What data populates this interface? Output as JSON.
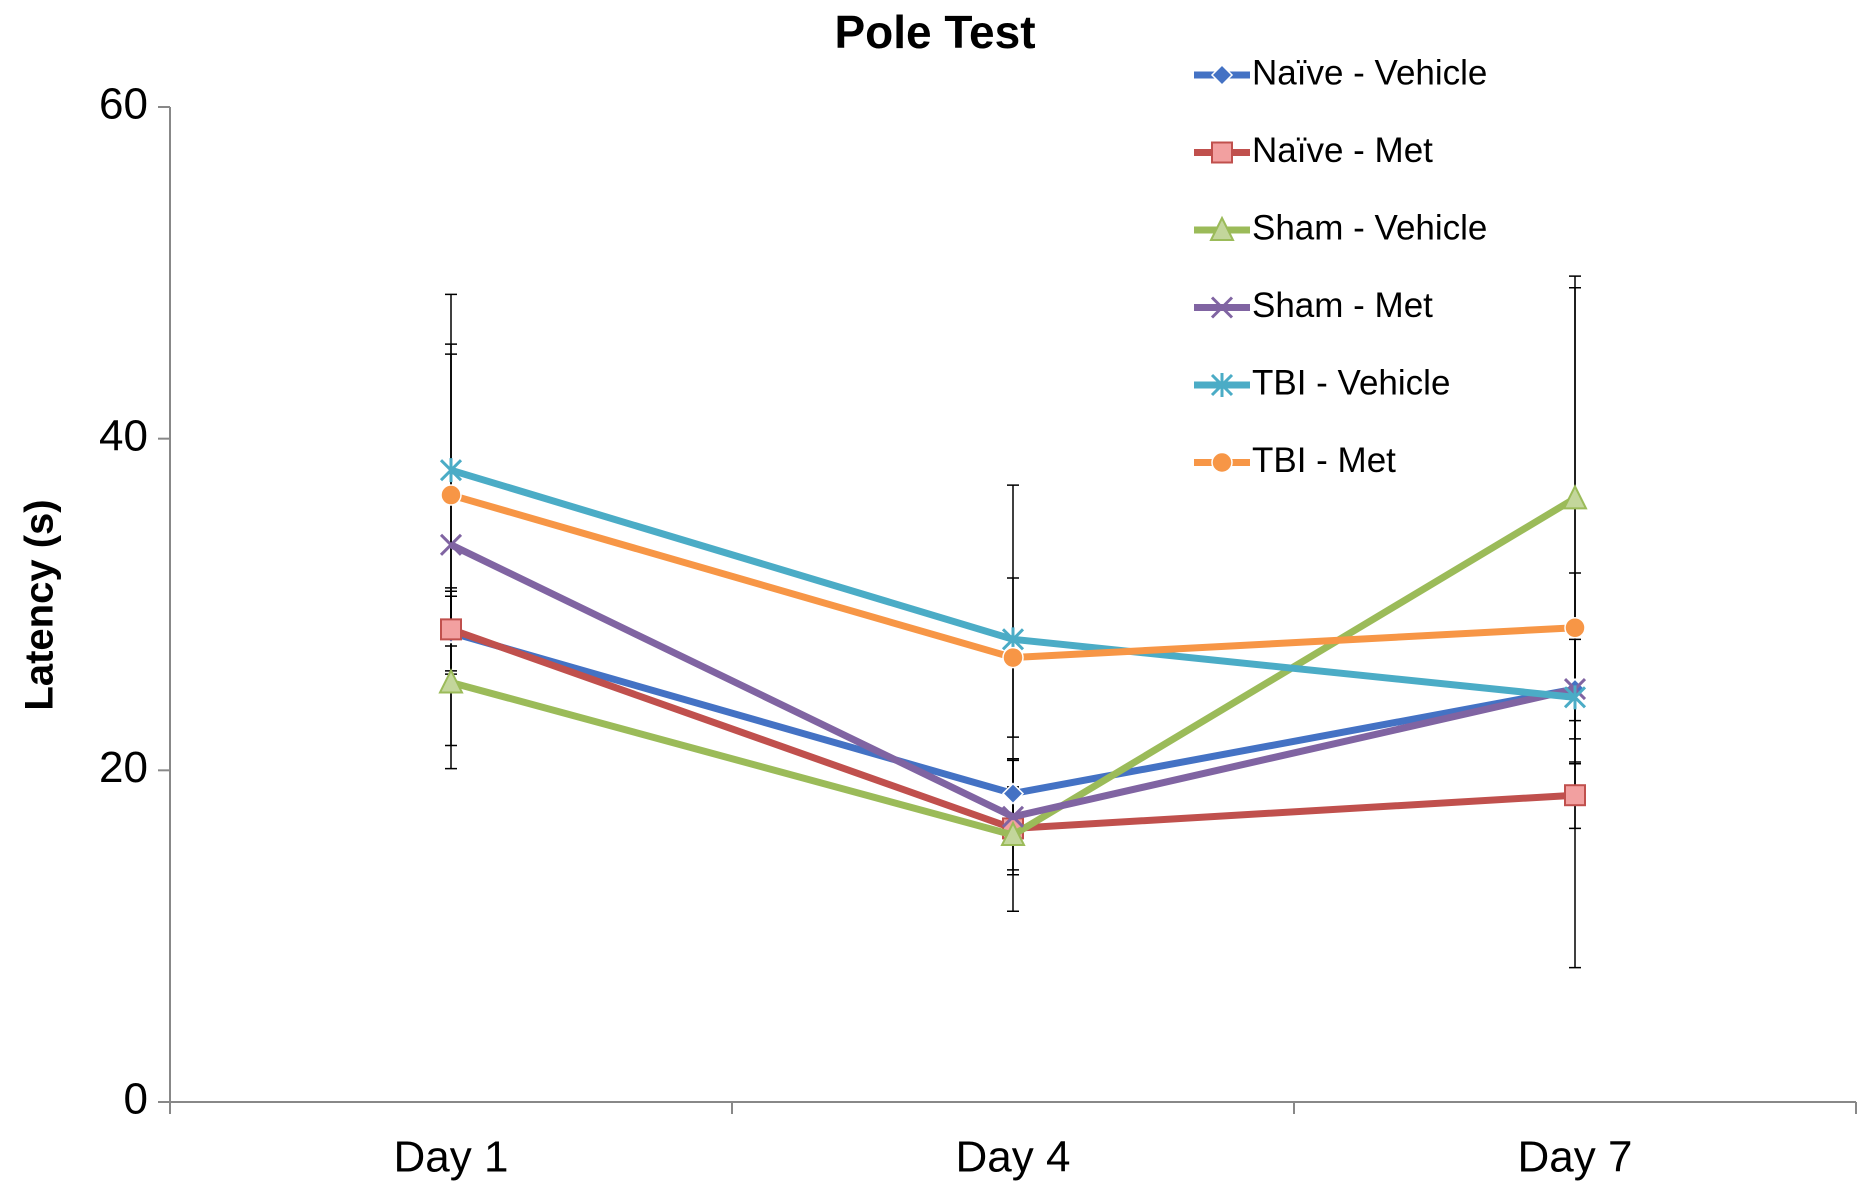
{
  "chart_data": {
    "type": "line",
    "title": "Pole Test",
    "y_label": "Latency (s)",
    "categories": [
      "Day 1",
      "Day 4",
      "Day 7"
    ],
    "series": [
      {
        "name": "Naïve - Vehicle",
        "color": "#4472c4",
        "marker": "diamond",
        "values": [
          28.3,
          18.6,
          24.9
        ],
        "errors": [
          2.5,
          2.0,
          7.0
        ]
      },
      {
        "name": "Naïve - Met",
        "color": "#c0504d",
        "marker": "square",
        "values": [
          28.5,
          16.5,
          18.5
        ],
        "errors": [
          2.5,
          2.5,
          2.0
        ]
      },
      {
        "name": "Sham - Vehicle",
        "color": "#9bbb59",
        "marker": "triangle",
        "values": [
          25.3,
          16.1,
          36.4
        ],
        "errors": [
          5.2,
          4.6,
          13.4
        ]
      },
      {
        "name": "Sham - Met",
        "color": "#8064a2",
        "marker": "x",
        "values": [
          33.6,
          17.2,
          24.9
        ],
        "errors": [
          12.1,
          3.5,
          3.0
        ]
      },
      {
        "name": "TBI - Vehicle",
        "color": "#4bacc6",
        "marker": "star",
        "values": [
          38.1,
          27.9,
          24.4
        ],
        "errors": [
          10.6,
          9.3,
          4.0
        ]
      },
      {
        "name": "TBI - Met",
        "color": "#f79646",
        "marker": "circle",
        "values": [
          36.6,
          26.8,
          28.6
        ],
        "errors": [
          8.5,
          4.8,
          20.5
        ]
      }
    ],
    "ylim": [
      0,
      60
    ],
    "yticks": [
      0,
      20,
      40,
      60
    ],
    "grid": false,
    "legend": "top-right"
  }
}
